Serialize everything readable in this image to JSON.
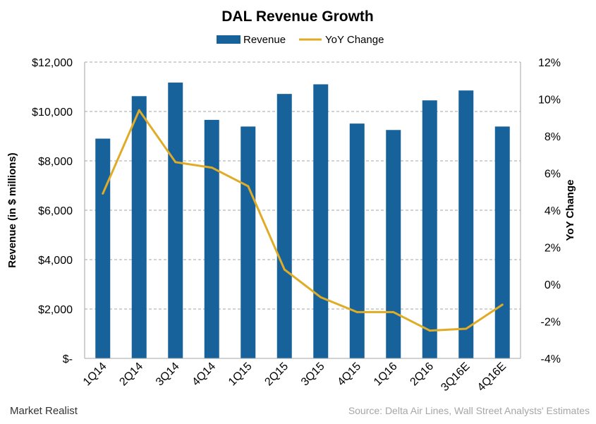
{
  "chart_data": {
    "type": "bar",
    "title": "DAL Revenue Growth",
    "categories": [
      "1Q14",
      "2Q14",
      "3Q14",
      "4Q14",
      "1Q15",
      "2Q15",
      "3Q15",
      "4Q15",
      "1Q16",
      "2Q16",
      "3Q16E",
      "4Q16E"
    ],
    "series": [
      {
        "name": "Revenue",
        "type": "bar",
        "axis": "left",
        "color": "#17629a",
        "values": [
          8900,
          10620,
          11170,
          9660,
          9390,
          10710,
          11100,
          9510,
          9250,
          10450,
          10850,
          9390
        ]
      },
      {
        "name": "YoY Change",
        "type": "line",
        "axis": "right",
        "color": "#e0ab26",
        "values": [
          4.9,
          9.4,
          6.6,
          6.3,
          5.3,
          0.8,
          -0.7,
          -1.5,
          -1.5,
          -2.5,
          -2.4,
          -1.1
        ]
      }
    ],
    "ylabel": "Revenue (in $ millions)",
    "ylabel_right": "YoY Change",
    "ylim": [
      0,
      12000
    ],
    "ylim_right": [
      -4,
      12
    ],
    "y_ticks": [
      {
        "value": 0,
        "label": "$-"
      },
      {
        "value": 2000,
        "label": "$2,000"
      },
      {
        "value": 4000,
        "label": "$4,000"
      },
      {
        "value": 6000,
        "label": "$6,000"
      },
      {
        "value": 8000,
        "label": "$8,000"
      },
      {
        "value": 10000,
        "label": "$10,000"
      },
      {
        "value": 12000,
        "label": "$12,000"
      }
    ],
    "y_right_ticks": [
      {
        "value": -4,
        "label": "-4%"
      },
      {
        "value": -2,
        "label": "-2%"
      },
      {
        "value": 0,
        "label": "0%"
      },
      {
        "value": 2,
        "label": "2%"
      },
      {
        "value": 4,
        "label": "4%"
      },
      {
        "value": 6,
        "label": "6%"
      },
      {
        "value": 8,
        "label": "8%"
      },
      {
        "value": 10,
        "label": "10%"
      },
      {
        "value": 12,
        "label": "12%"
      }
    ],
    "grid": true,
    "legend_position": "top-center"
  },
  "brand": "Market Realist",
  "source": "Source: Delta Air Lines, Wall Street Analysts' Estimates"
}
